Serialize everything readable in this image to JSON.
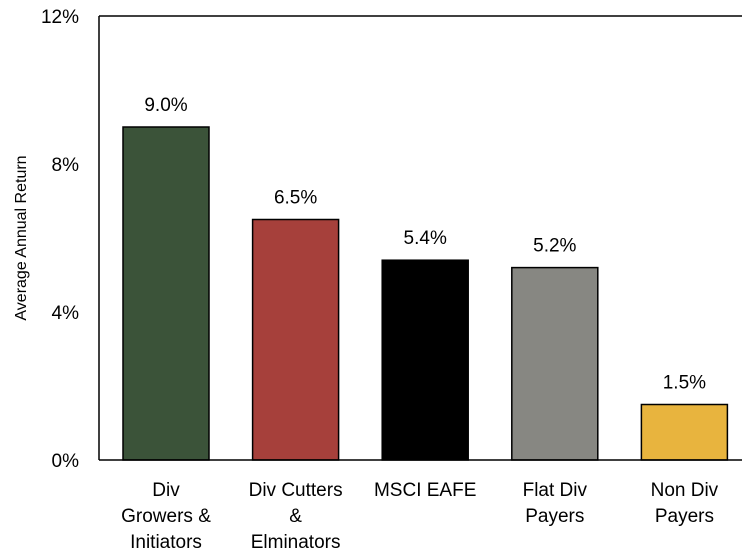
{
  "chart_data": {
    "type": "bar",
    "title": "",
    "xlabel": "",
    "ylabel": "Average Annual Return",
    "ylim": [
      0,
      12
    ],
    "y_ticks": [
      {
        "value": 0,
        "label": "0%"
      },
      {
        "value": 4,
        "label": "4%"
      },
      {
        "value": 8,
        "label": "8%"
      },
      {
        "value": 12,
        "label": "12%"
      }
    ],
    "categories": [
      [
        "Div",
        "Growers &",
        "Initiators"
      ],
      [
        "Div Cutters",
        "&",
        "Elminators"
      ],
      [
        "MSCI EAFE"
      ],
      [
        "Flat Div",
        "Payers"
      ],
      [
        "Non Div",
        "Payers"
      ]
    ],
    "values": [
      9.0,
      6.5,
      5.4,
      5.2,
      1.5
    ],
    "data_labels": [
      "9.0%",
      "6.5%",
      "5.4%",
      "5.2%",
      "1.5%"
    ],
    "colors": [
      "#3b5339",
      "#a6403b",
      "#000000",
      "#878782",
      "#e8b43e"
    ],
    "grid": false,
    "legend": "none"
  }
}
